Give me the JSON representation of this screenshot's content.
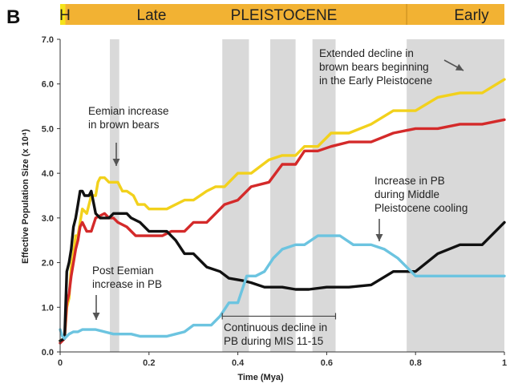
{
  "panel_label": "B",
  "epoch_bar": {
    "segments": [
      {
        "label": "H",
        "start": 0.0,
        "end": 0.0117,
        "color": "#F5E31A"
      },
      {
        "label": "Late",
        "start": 0.0117,
        "end": 0.78,
        "color": "#F2B233"
      },
      {
        "label": "Early",
        "start": 0.78,
        "end": 1.0,
        "color": "#F2B233"
      }
    ],
    "overlay_label": "PLEISTOCENE"
  },
  "chart_data": {
    "type": "line",
    "xlabel": "Time (Mya)",
    "ylabel": "Effective Population Size (x 10⁴)",
    "xlim": [
      0,
      1
    ],
    "ylim": [
      0,
      7
    ],
    "xticks": [
      0,
      0.2,
      0.4,
      0.6,
      0.8,
      1
    ],
    "xtick_labels": [
      "0",
      "0.2",
      "0.4",
      "0.6",
      "0.8",
      "1"
    ],
    "yticks": [
      0,
      1,
      2,
      3,
      4,
      5,
      6,
      7
    ],
    "ytick_labels": [
      "0.0",
      "1.0",
      "2.0",
      "3.0",
      "4.0",
      "5.0",
      "6.0",
      "7.0"
    ],
    "grid": false,
    "shaded_intervals": [
      [
        0.112,
        0.133
      ],
      [
        0.365,
        0.425
      ],
      [
        0.473,
        0.53
      ],
      [
        0.568,
        0.62
      ],
      [
        0.78,
        1.0
      ]
    ],
    "series": [
      {
        "color": "#F2D11C",
        "x": [
          0.0,
          0.01,
          0.015,
          0.02,
          0.025,
          0.03,
          0.035,
          0.04,
          0.045,
          0.05,
          0.06,
          0.07,
          0.08,
          0.085,
          0.09,
          0.1,
          0.11,
          0.12,
          0.13,
          0.14,
          0.15,
          0.165,
          0.175,
          0.19,
          0.2,
          0.21,
          0.22,
          0.24,
          0.26,
          0.28,
          0.3,
          0.33,
          0.35,
          0.37,
          0.4,
          0.43,
          0.47,
          0.5,
          0.53,
          0.55,
          0.58,
          0.61,
          0.65,
          0.7,
          0.75,
          0.8,
          0.85,
          0.9,
          0.95,
          1.0
        ],
        "y": [
          0.25,
          0.3,
          1.0,
          1.2,
          1.9,
          2.2,
          2.6,
          2.6,
          2.9,
          3.2,
          3.1,
          3.5,
          3.5,
          3.8,
          3.9,
          3.9,
          3.8,
          3.8,
          3.8,
          3.6,
          3.6,
          3.5,
          3.3,
          3.3,
          3.2,
          3.2,
          3.2,
          3.2,
          3.3,
          3.4,
          3.4,
          3.6,
          3.7,
          3.7,
          4.0,
          4.0,
          4.3,
          4.4,
          4.4,
          4.6,
          4.6,
          4.9,
          4.9,
          5.1,
          5.4,
          5.4,
          5.7,
          5.8,
          5.8,
          6.1
        ]
      },
      {
        "color": "#D42A2A",
        "x": [
          0.0,
          0.01,
          0.015,
          0.02,
          0.025,
          0.03,
          0.035,
          0.04,
          0.045,
          0.05,
          0.06,
          0.07,
          0.08,
          0.1,
          0.11,
          0.12,
          0.13,
          0.15,
          0.17,
          0.19,
          0.21,
          0.23,
          0.25,
          0.28,
          0.3,
          0.33,
          0.35,
          0.37,
          0.4,
          0.43,
          0.47,
          0.5,
          0.53,
          0.55,
          0.58,
          0.61,
          0.65,
          0.7,
          0.75,
          0.8,
          0.85,
          0.9,
          0.95,
          1.0
        ],
        "y": [
          0.2,
          0.3,
          1.1,
          1.3,
          1.7,
          2.0,
          2.3,
          2.5,
          2.8,
          2.9,
          2.7,
          2.7,
          3.0,
          3.1,
          3.0,
          3.0,
          2.9,
          2.8,
          2.6,
          2.6,
          2.6,
          2.6,
          2.7,
          2.7,
          2.9,
          2.9,
          3.1,
          3.3,
          3.4,
          3.7,
          3.8,
          4.2,
          4.2,
          4.5,
          4.5,
          4.6,
          4.7,
          4.7,
          4.9,
          5.0,
          5.0,
          5.1,
          5.1,
          5.2
        ]
      },
      {
        "color": "#111111",
        "x": [
          0.0,
          0.01,
          0.015,
          0.02,
          0.025,
          0.03,
          0.035,
          0.04,
          0.045,
          0.05,
          0.055,
          0.06,
          0.065,
          0.07,
          0.08,
          0.09,
          0.1,
          0.11,
          0.12,
          0.13,
          0.14,
          0.15,
          0.16,
          0.18,
          0.2,
          0.22,
          0.24,
          0.26,
          0.28,
          0.3,
          0.33,
          0.36,
          0.38,
          0.41,
          0.43,
          0.46,
          0.5,
          0.53,
          0.56,
          0.6,
          0.65,
          0.7,
          0.75,
          0.8,
          0.85,
          0.9,
          0.95,
          1.0
        ],
        "y": [
          0.25,
          0.3,
          1.8,
          2.0,
          2.3,
          2.8,
          3.0,
          3.3,
          3.6,
          3.6,
          3.5,
          3.5,
          3.5,
          3.6,
          3.1,
          3.0,
          3.0,
          3.0,
          3.1,
          3.1,
          3.1,
          3.1,
          3.0,
          2.9,
          2.7,
          2.7,
          2.7,
          2.5,
          2.2,
          2.2,
          1.9,
          1.8,
          1.65,
          1.6,
          1.55,
          1.45,
          1.45,
          1.4,
          1.4,
          1.45,
          1.45,
          1.5,
          1.8,
          1.8,
          2.2,
          2.4,
          2.4,
          2.9
        ]
      },
      {
        "color": "#6CC4E0",
        "x": [
          0.0,
          0.005,
          0.01,
          0.015,
          0.02,
          0.03,
          0.04,
          0.05,
          0.06,
          0.08,
          0.1,
          0.12,
          0.14,
          0.16,
          0.18,
          0.2,
          0.22,
          0.24,
          0.26,
          0.28,
          0.3,
          0.32,
          0.34,
          0.36,
          0.38,
          0.4,
          0.42,
          0.44,
          0.46,
          0.48,
          0.5,
          0.53,
          0.55,
          0.58,
          0.6,
          0.63,
          0.66,
          0.7,
          0.73,
          0.76,
          0.78,
          0.8,
          0.82,
          0.85,
          0.9,
          0.95,
          1.0
        ],
        "y": [
          0.5,
          0.35,
          0.3,
          0.35,
          0.4,
          0.45,
          0.45,
          0.5,
          0.5,
          0.5,
          0.45,
          0.4,
          0.4,
          0.4,
          0.35,
          0.35,
          0.35,
          0.35,
          0.4,
          0.45,
          0.6,
          0.6,
          0.6,
          0.8,
          1.1,
          1.1,
          1.7,
          1.7,
          1.8,
          2.1,
          2.3,
          2.4,
          2.4,
          2.6,
          2.6,
          2.6,
          2.4,
          2.4,
          2.3,
          2.1,
          1.9,
          1.7,
          1.7,
          1.7,
          1.7,
          1.7,
          1.7
        ]
      }
    ],
    "annotations": [
      {
        "text": "Extended decline in brown bears beginning in the Early Pleistocene",
        "lines": [
          "Extended decline in",
          "brown bears beginning",
          "in the Early Pleistocene"
        ]
      },
      {
        "text": "Eemian increase in brown bears",
        "lines": [
          "Eemian increase",
          "in brown bears"
        ]
      },
      {
        "text": "Increase in PB during Middle Pleistocene cooling",
        "lines": [
          "Increase in PB",
          "during Middle",
          "Pleistocene cooling"
        ]
      },
      {
        "text": "Post Eemian increase in PB",
        "lines": [
          "Post Eemian",
          "increase in PB"
        ]
      },
      {
        "text": "Continuous decline in PB during MIS 11-15",
        "lines": [
          "Continuous decline in",
          "PB during MIS 11-15"
        ]
      }
    ],
    "bracket": {
      "x_start": 0.365,
      "x_end": 0.62,
      "y": 0.8
    }
  }
}
